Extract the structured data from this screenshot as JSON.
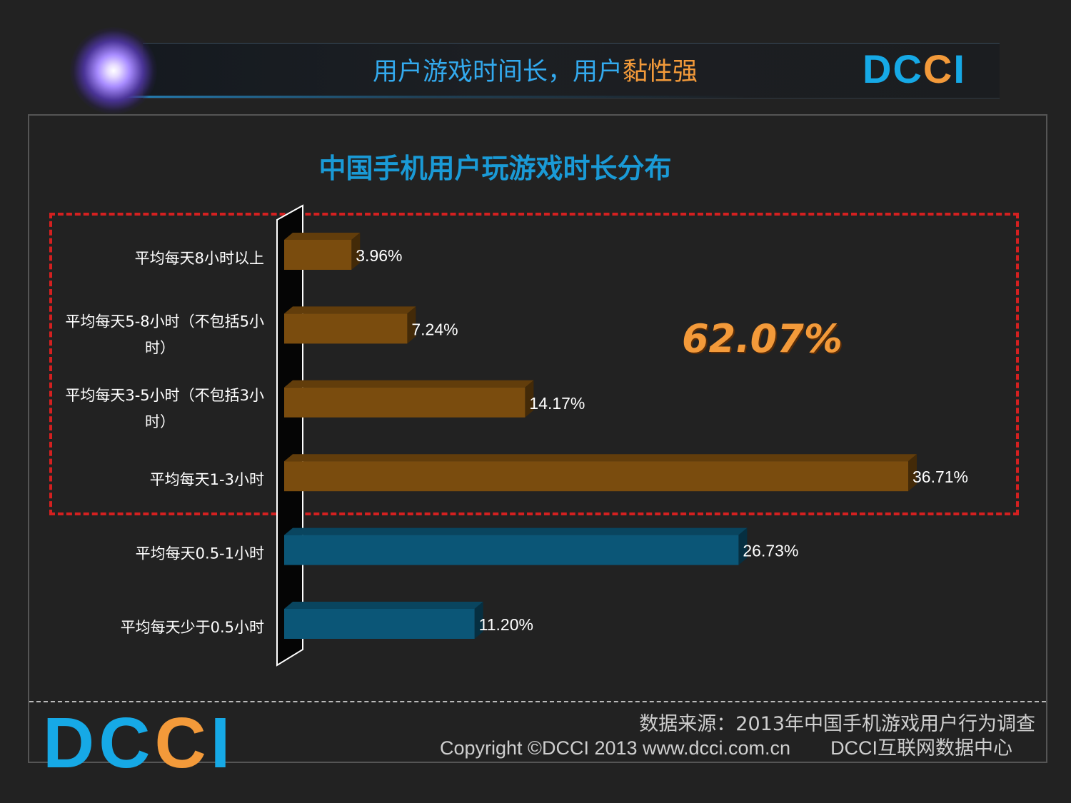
{
  "header": {
    "title_main": "用户游戏时间长，用户",
    "title_accent": "黏性强"
  },
  "logo": {
    "letters": [
      "D",
      "C",
      "C",
      "I"
    ],
    "letter_colors": [
      "#16a9e6",
      "#16a9e6",
      "#f39a3a",
      "#16a9e6"
    ],
    "icon": "starburst-icon"
  },
  "colors": {
    "highlight_border": "#d42020",
    "accent_orange": "#f39a3a",
    "title_blue": "#1a9ad6"
  },
  "chart_data": {
    "type": "bar",
    "orientation": "horizontal",
    "title": "中国手机用户玩游戏时长分布",
    "categories": [
      "平均每天8小时以上",
      "平均每天5-8小时（不包括5小时）",
      "平均每天3-5小时（不包括3小时）",
      "平均每天1-3小时",
      "平均每天0.5-1小时",
      "平均每天少于0.5小时"
    ],
    "category_lines": [
      [
        "平均每天8小时以上"
      ],
      [
        "平均每天5-8小时（不包括5小",
        "时）"
      ],
      [
        "平均每天3-5小时（不包括3小",
        "时）"
      ],
      [
        "平均每天1-3小时"
      ],
      [
        "平均每天0.5-1小时"
      ],
      [
        "平均每天少于0.5小时"
      ]
    ],
    "values": [
      3.96,
      7.24,
      14.17,
      36.71,
      26.73,
      11.2
    ],
    "value_labels": [
      "3.96%",
      "7.24%",
      "14.17%",
      "36.71%",
      "26.73%",
      "11.20%"
    ],
    "bar_colors": [
      "#7a4c0e",
      "#7a4c0e",
      "#7a4c0e",
      "#7a4c0e",
      "#0b5677",
      "#0b5677"
    ],
    "xlim": [
      0,
      40
    ],
    "grid": false,
    "legend": false,
    "highlight": {
      "categories": [
        "平均每天8小时以上",
        "平均每天5-8小时（不包括5小时）",
        "平均每天3-5小时（不包括3小时）",
        "平均每天1-3小时"
      ],
      "label": "62.07%"
    }
  },
  "footer": {
    "source": "数据来源：2013年中国手机游戏用户行为调查",
    "copyright": "Copyright ©DCCI 2013 www.dcci.com.cn",
    "org": "DCCI互联网数据中心"
  }
}
